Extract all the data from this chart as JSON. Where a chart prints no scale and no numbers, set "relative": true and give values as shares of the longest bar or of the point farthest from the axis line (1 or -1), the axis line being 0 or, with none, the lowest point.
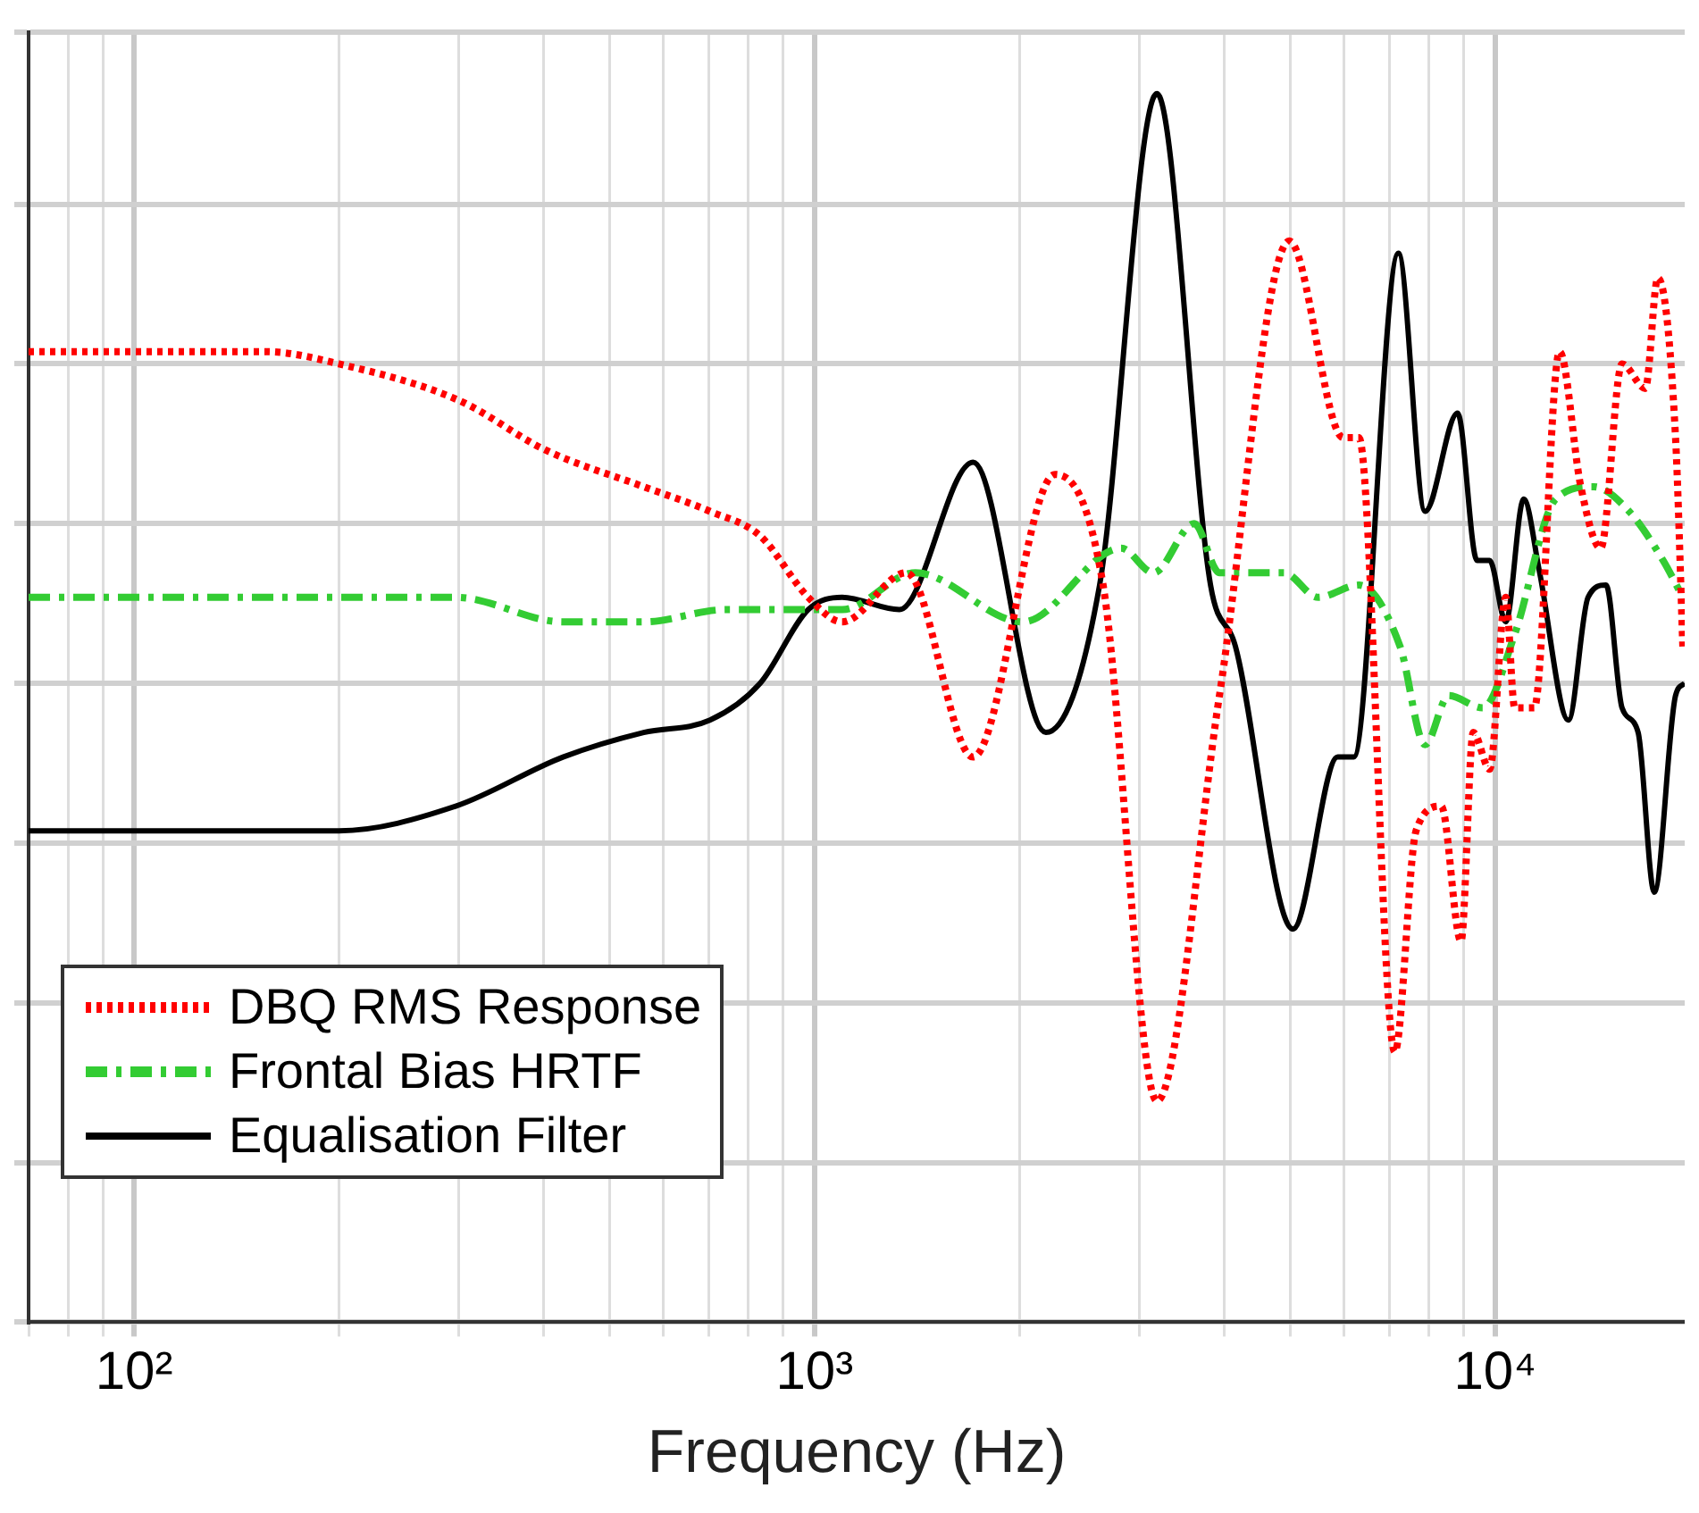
{
  "chart_data": {
    "type": "line",
    "xlabel": "Frequency (Hz)",
    "relative": true,
    "log": "x",
    "grid": true,
    "legend": "bottom left",
    "tick_labels": "x",
    "marker": "none",
    "xlim": [
      70,
      19000
    ],
    "xticks": [
      {
        "value": 70,
        "label": null
      },
      {
        "value": 80,
        "label": null
      },
      {
        "value": 90,
        "label": null
      },
      {
        "value": 100,
        "label": "10²"
      },
      {
        "value": 200,
        "label": null
      },
      {
        "value": 300,
        "label": null
      },
      {
        "value": 400,
        "label": null
      },
      {
        "value": 500,
        "label": null
      },
      {
        "value": 600,
        "label": null
      },
      {
        "value": 700,
        "label": null
      },
      {
        "value": 800,
        "label": null
      },
      {
        "value": 900,
        "label": null
      },
      {
        "value": 1000,
        "label": "10³"
      },
      {
        "value": 2000,
        "label": null
      },
      {
        "value": 3000,
        "label": null
      },
      {
        "value": 4000,
        "label": null
      },
      {
        "value": 5000,
        "label": null
      },
      {
        "value": 6000,
        "label": null
      },
      {
        "value": 7000,
        "label": null
      },
      {
        "value": 8000,
        "label": null
      },
      {
        "value": 9000,
        "label": null
      },
      {
        "value": 10000,
        "label": "10⁴"
      }
    ],
    "series": [
      {
        "name": "DBQ RMS Response",
        "color": "#ff0000",
        "line_style": "dotted",
        "x": [
          70,
          156,
          200,
          301,
          402,
          561,
          702,
          832,
          979,
          1098,
          1365,
          1710,
          2256,
          2655,
          3185,
          3936,
          4985,
          5982,
          6310,
          7125,
          7656,
          8337,
          8913,
          9290,
          9820,
          10370,
          10690,
          11420,
          12440,
          13370,
          14300,
          15370,
          16630,
          17350,
          18420,
          18880
        ],
        "values": [
          0.79,
          0.79,
          0.78,
          0.75,
          0.71,
          0.68,
          0.66,
          0.64,
          0.59,
          0.57,
          0.61,
          0.46,
          0.69,
          0.6,
          0.18,
          0.51,
          0.88,
          0.72,
          0.72,
          0.22,
          0.4,
          0.42,
          0.31,
          0.48,
          0.45,
          0.59,
          0.5,
          0.5,
          0.79,
          0.68,
          0.63,
          0.78,
          0.76,
          0.85,
          0.72,
          0.55
        ]
      },
      {
        "name": "Frontal Bias HRTF",
        "color": "#33cc33",
        "line_style": "dashed",
        "x": [
          70,
          297,
          427,
          561,
          741,
          979,
          1098,
          1407,
          2024,
          2823,
          3149,
          3614,
          3936,
          4894,
          5495,
          6310,
          7253,
          7893,
          8550,
          9590,
          10690,
          12280,
          13960,
          15740,
          17660,
          18880
        ],
        "values": [
          0.59,
          0.59,
          0.57,
          0.57,
          0.58,
          0.58,
          0.58,
          0.61,
          0.57,
          0.63,
          0.61,
          0.65,
          0.61,
          0.61,
          0.59,
          0.6,
          0.55,
          0.47,
          0.51,
          0.5,
          0.56,
          0.67,
          0.68,
          0.66,
          0.62,
          0.59
        ]
      },
      {
        "name": "Equalisation Filter",
        "color": "#000000",
        "line_style": "solid",
        "x": [
          70,
          156,
          200,
          297,
          427,
          561,
          702,
          832,
          979,
          1098,
          1333,
          1710,
          2188,
          2624,
          3185,
          3819,
          4155,
          5047,
          5873,
          6200,
          7211,
          7893,
          8811,
          9410,
          9820,
          10370,
          11020,
          11630,
          12820,
          13700,
          14560,
          15370,
          16230,
          17140,
          18420,
          19000
        ],
        "values": [
          0.4,
          0.4,
          0.4,
          0.42,
          0.46,
          0.48,
          0.49,
          0.52,
          0.58,
          0.59,
          0.58,
          0.7,
          0.48,
          0.6,
          1.0,
          0.6,
          0.55,
          0.32,
          0.46,
          0.46,
          0.87,
          0.66,
          0.74,
          0.62,
          0.62,
          0.57,
          0.67,
          0.61,
          0.49,
          0.59,
          0.6,
          0.5,
          0.48,
          0.35,
          0.51,
          0.52
        ]
      }
    ]
  }
}
